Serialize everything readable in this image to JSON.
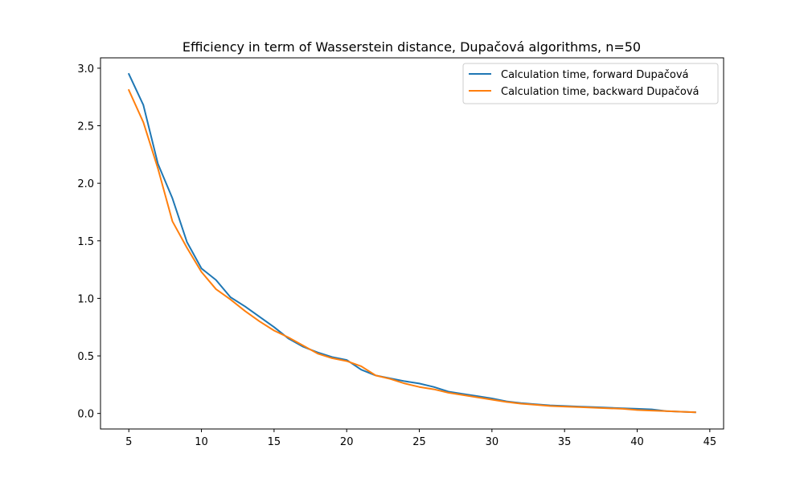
{
  "chart_data": {
    "type": "line",
    "title": "Efficiency in term of Wasserstein distance, Dupačová algorithms, n=50",
    "xlabel": "",
    "ylabel": "",
    "xlim": [
      3.05,
      45.95
    ],
    "ylim": [
      -0.135,
      3.09
    ],
    "xticks": [
      5,
      10,
      15,
      20,
      25,
      30,
      35,
      40,
      45
    ],
    "yticks": [
      0.0,
      0.5,
      1.0,
      1.5,
      2.0,
      2.5,
      3.0
    ],
    "xtick_labels": [
      "5",
      "10",
      "15",
      "20",
      "25",
      "30",
      "35",
      "40",
      "45"
    ],
    "ytick_labels": [
      "0.0",
      "0.5",
      "1.0",
      "1.5",
      "2.0",
      "2.5",
      "3.0"
    ],
    "grid": false,
    "legend_position": "top-right",
    "x": [
      5,
      6,
      7,
      8,
      9,
      10,
      11,
      12,
      13,
      14,
      15,
      16,
      17,
      18,
      19,
      20,
      21,
      22,
      23,
      24,
      25,
      26,
      27,
      28,
      29,
      30,
      31,
      32,
      33,
      34,
      35,
      36,
      37,
      38,
      39,
      40,
      41,
      42,
      43,
      44
    ],
    "series": [
      {
        "name": "Calculation time, forward Dupačová",
        "color": "#1f77b4",
        "values": [
          2.95,
          2.68,
          2.17,
          1.87,
          1.49,
          1.26,
          1.16,
          1.01,
          0.93,
          0.84,
          0.75,
          0.65,
          0.58,
          0.53,
          0.49,
          0.465,
          0.38,
          0.33,
          0.305,
          0.28,
          0.26,
          0.23,
          0.19,
          0.17,
          0.15,
          0.13,
          0.105,
          0.09,
          0.08,
          0.07,
          0.065,
          0.06,
          0.055,
          0.05,
          0.045,
          0.04,
          0.035,
          0.02,
          0.015,
          0.01
        ]
      },
      {
        "name": "Calculation time, backward Dupačová",
        "color": "#ff7f0e",
        "values": [
          2.81,
          2.53,
          2.13,
          1.67,
          1.44,
          1.23,
          1.08,
          0.99,
          0.89,
          0.8,
          0.72,
          0.66,
          0.59,
          0.52,
          0.48,
          0.455,
          0.41,
          0.33,
          0.3,
          0.26,
          0.23,
          0.21,
          0.18,
          0.16,
          0.14,
          0.12,
          0.1,
          0.085,
          0.075,
          0.065,
          0.06,
          0.055,
          0.05,
          0.045,
          0.04,
          0.03,
          0.025,
          0.02,
          0.015,
          0.01
        ]
      }
    ]
  }
}
